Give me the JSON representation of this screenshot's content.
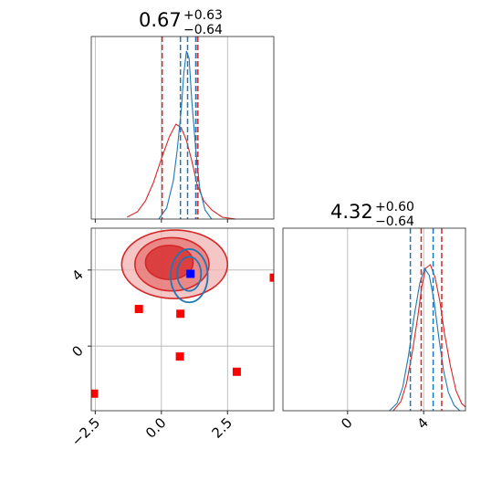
{
  "chart_data": {
    "type": "corner",
    "colors": {
      "red": "#d62728",
      "blue": "#1f77b4",
      "red_marker": "#ff0000",
      "blue_marker": "#0000ff"
    },
    "params": [
      {
        "title_main": "0.67",
        "title_sup": "+0.63",
        "title_sub": "−0.64",
        "range": [
          -2.65,
          4.25
        ]
      },
      {
        "title_main": "4.32",
        "title_sup": "+0.60",
        "title_sub": "−0.64",
        "range": [
          -3.4,
          6.2
        ]
      }
    ],
    "grid": true,
    "x_ticks": [
      {
        "v": -2.5,
        "label": "−2.5"
      },
      {
        "v": 0.0,
        "label": "0.0"
      },
      {
        "v": 2.5,
        "label": "2.5"
      }
    ],
    "y_ticks": [
      {
        "v": 0,
        "label": "0"
      },
      {
        "v": 4,
        "label": "4"
      }
    ],
    "p1_ticks": [
      {
        "v": 0,
        "label": "0"
      },
      {
        "v": 4,
        "label": "4"
      }
    ],
    "hist1": {
      "quantiles_red": [
        0.03,
        1.3,
        1.38
      ],
      "quantiles_blue": [
        0.72,
        0.99,
        1.31
      ],
      "red_peak": [
        [
          -1.3,
          0.01
        ],
        [
          -0.9,
          0.04
        ],
        [
          -0.6,
          0.1
        ],
        [
          -0.3,
          0.2
        ],
        [
          0.0,
          0.33
        ],
        [
          0.3,
          0.45
        ],
        [
          0.55,
          0.52
        ],
        [
          0.75,
          0.5
        ],
        [
          0.95,
          0.43
        ],
        [
          1.15,
          0.32
        ],
        [
          1.35,
          0.19
        ],
        [
          1.6,
          0.1
        ],
        [
          1.9,
          0.05
        ],
        [
          2.3,
          0.01
        ],
        [
          2.8,
          0.0
        ]
      ],
      "blue_peak": [
        [
          -0.1,
          0.0
        ],
        [
          0.2,
          0.06
        ],
        [
          0.45,
          0.21
        ],
        [
          0.6,
          0.38
        ],
        [
          0.75,
          0.6
        ],
        [
          0.85,
          0.8
        ],
        [
          0.95,
          0.92
        ],
        [
          1.05,
          0.88
        ],
        [
          1.15,
          0.65
        ],
        [
          1.3,
          0.38
        ],
        [
          1.45,
          0.17
        ],
        [
          1.65,
          0.05
        ],
        [
          1.9,
          0.0
        ]
      ]
    },
    "hist2": {
      "quantiles_red": [
        3.87,
        4.95
      ],
      "quantiles_blue": [
        3.3,
        4.5
      ],
      "red_peak": [
        [
          2.4,
          0.0
        ],
        [
          2.8,
          0.05
        ],
        [
          3.1,
          0.15
        ],
        [
          3.4,
          0.32
        ],
        [
          3.7,
          0.52
        ],
        [
          3.9,
          0.68
        ],
        [
          4.1,
          0.78
        ],
        [
          4.35,
          0.8
        ],
        [
          4.6,
          0.73
        ],
        [
          4.85,
          0.6
        ],
        [
          5.1,
          0.42
        ],
        [
          5.4,
          0.25
        ],
        [
          5.7,
          0.11
        ],
        [
          6.0,
          0.04
        ],
        [
          6.2,
          0.02
        ]
      ],
      "blue_peak": [
        [
          2.2,
          0.0
        ],
        [
          2.6,
          0.04
        ],
        [
          2.9,
          0.13
        ],
        [
          3.2,
          0.3
        ],
        [
          3.5,
          0.52
        ],
        [
          3.8,
          0.7
        ],
        [
          4.05,
          0.78
        ],
        [
          4.3,
          0.74
        ],
        [
          4.55,
          0.6
        ],
        [
          4.8,
          0.4
        ],
        [
          5.05,
          0.22
        ],
        [
          5.3,
          0.1
        ],
        [
          5.6,
          0.03
        ],
        [
          5.9,
          0.0
        ]
      ]
    },
    "joint": {
      "red_contours": [
        {
          "cx": 0.3,
          "cy": 4.4,
          "rx": 0.9,
          "ry": 0.9
        },
        {
          "cx": 0.4,
          "cy": 4.3,
          "rx": 1.4,
          "ry": 1.4
        },
        {
          "cx": 0.5,
          "cy": 4.3,
          "rx": 2.0,
          "ry": 1.8
        }
      ],
      "blue_contours": [
        {
          "cx": 1.05,
          "cy": 3.8,
          "rx": 0.45,
          "ry": 0.9
        },
        {
          "cx": 1.05,
          "cy": 3.7,
          "rx": 0.7,
          "ry": 1.4
        }
      ],
      "red_markers": [
        {
          "x": -2.55,
          "y": -2.5
        },
        {
          "x": -0.85,
          "y": 1.95
        },
        {
          "x": 0.72,
          "y": 1.7
        },
        {
          "x": 0.7,
          "y": -0.55
        },
        {
          "x": 2.85,
          "y": -1.35
        },
        {
          "x": 4.25,
          "y": 3.6
        }
      ],
      "blue_marker": {
        "x": 1.1,
        "y": 3.8
      }
    }
  }
}
